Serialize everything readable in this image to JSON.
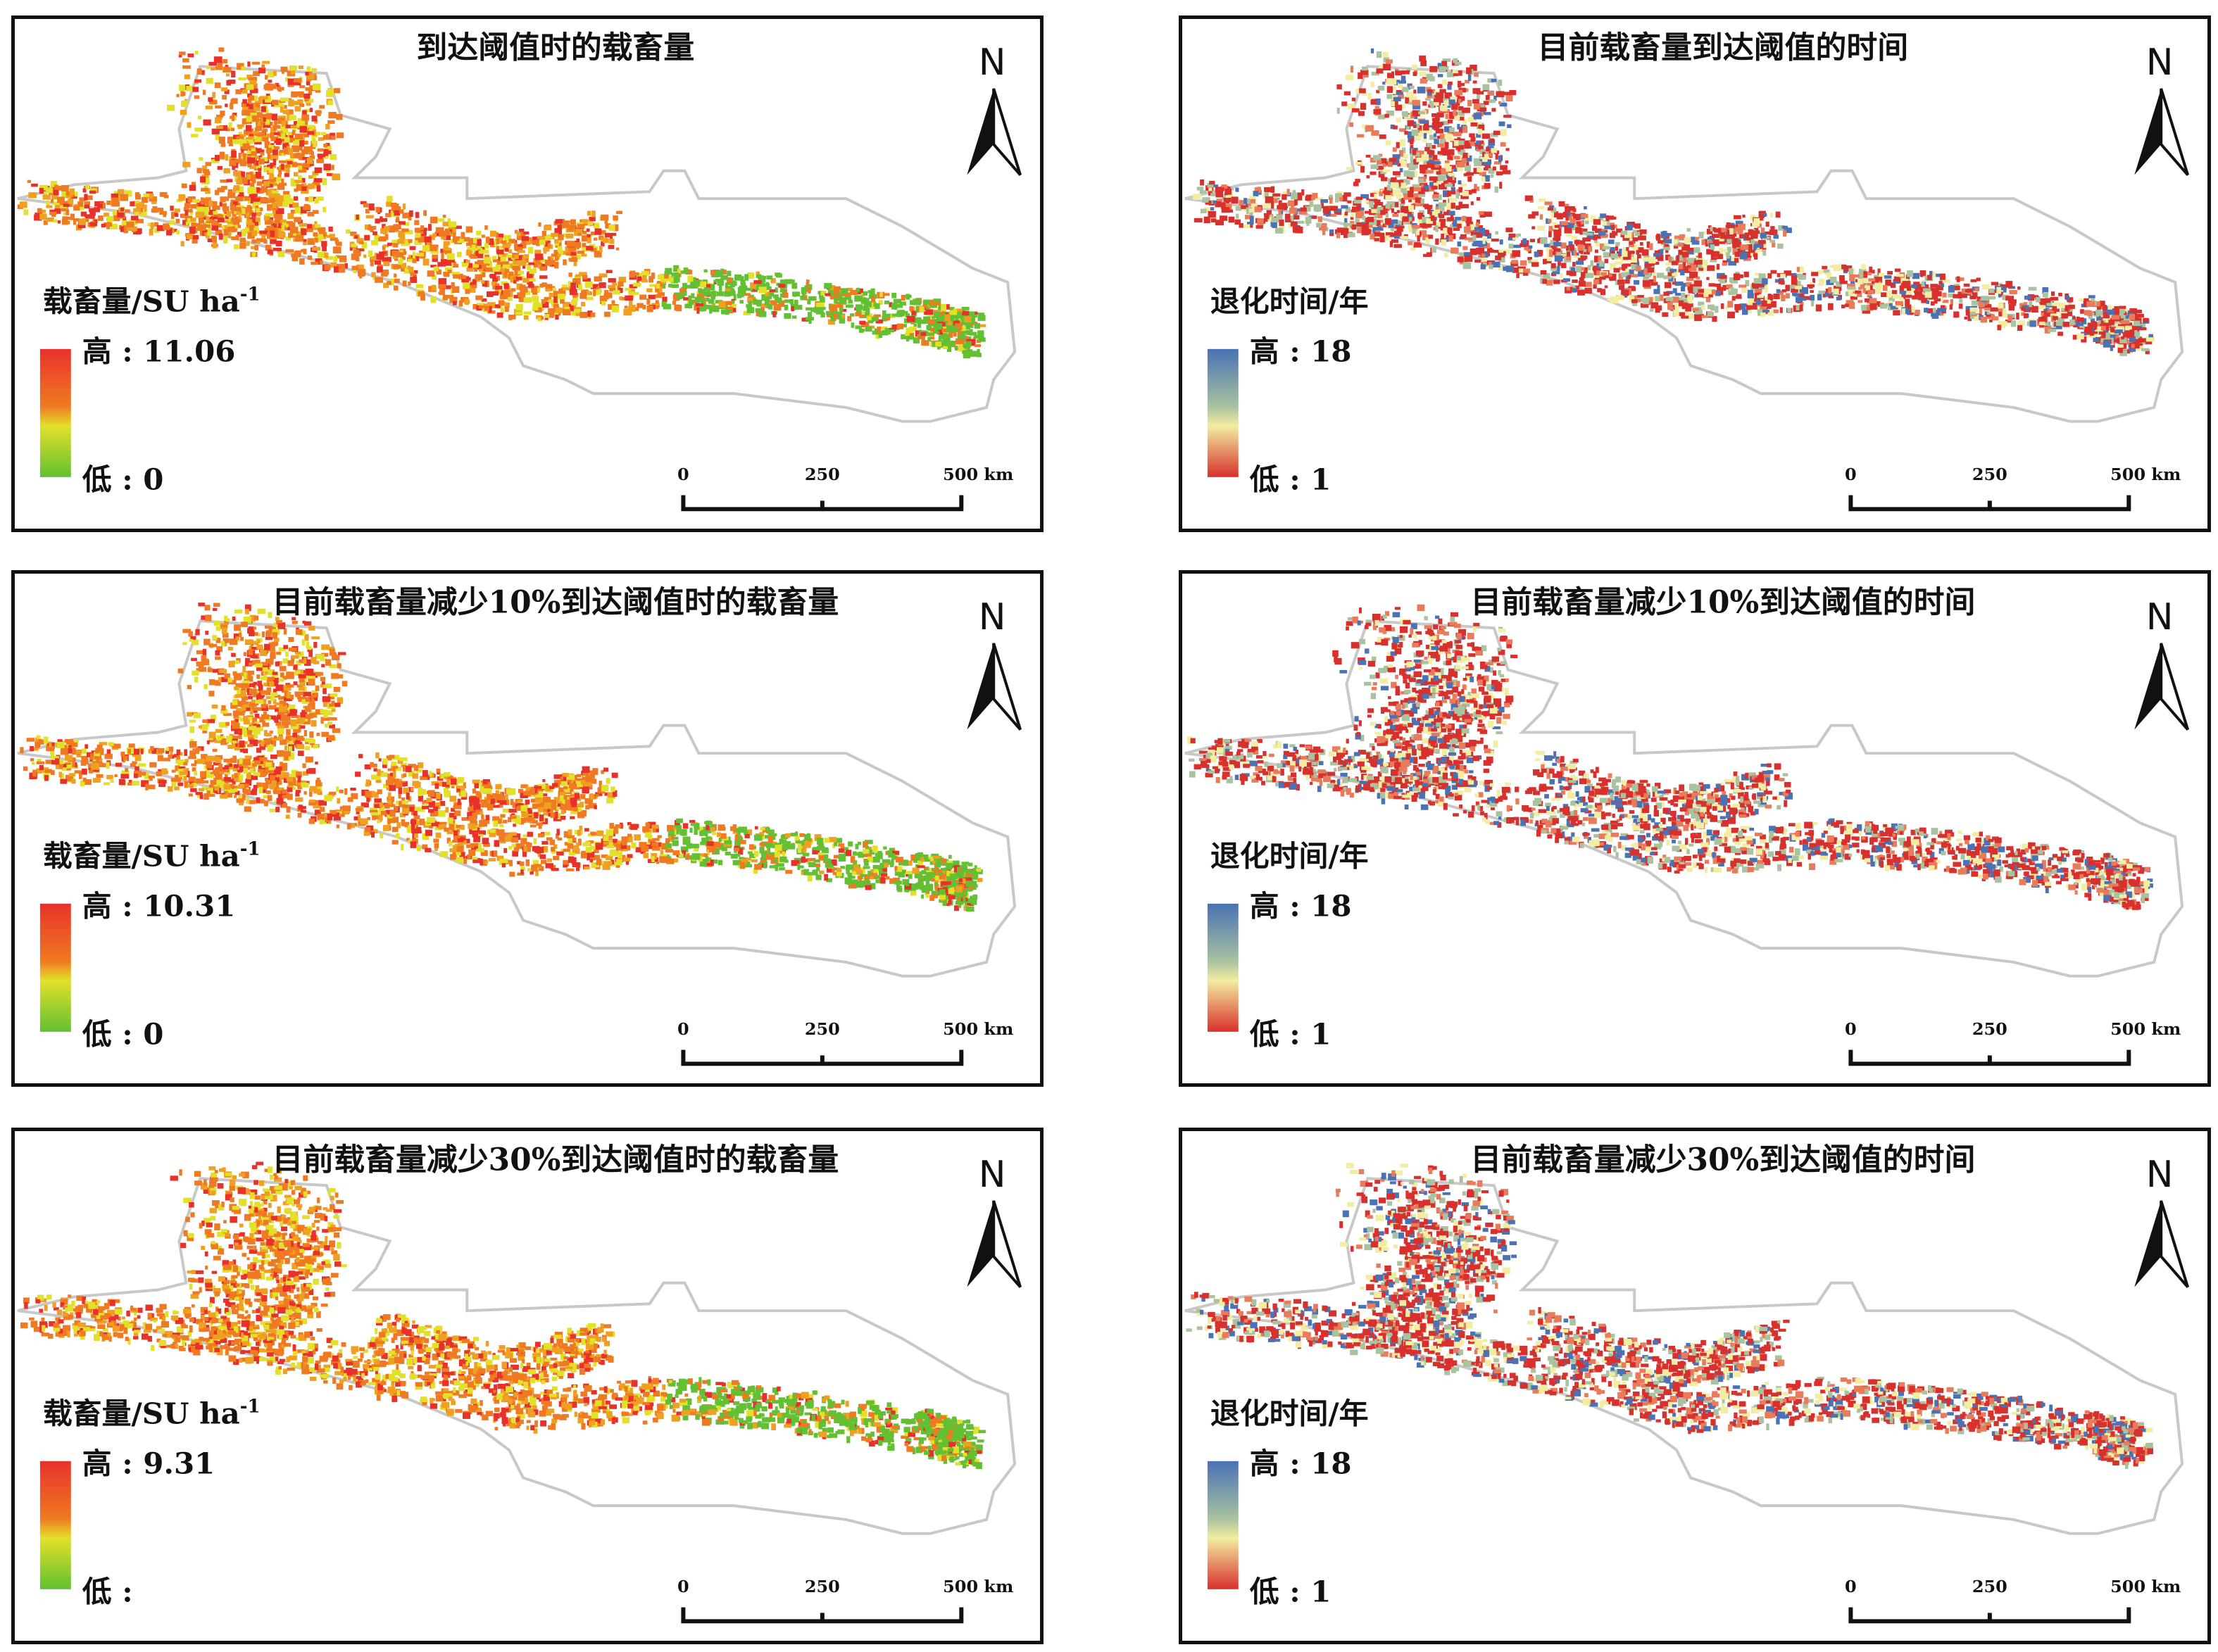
{
  "north_label": "N",
  "scale_bar": {
    "labels": [
      "0",
      "250",
      "500 km"
    ]
  },
  "palettes": {
    "capacity": {
      "high": "#e8312a",
      "mid1": "#f07a22",
      "mid2": "#e3e02a",
      "low": "#62c032"
    },
    "time": {
      "high": "#4a72b4",
      "mid1": "#a9c2a0",
      "mid2": "#f2eda0",
      "low": "#d8302c"
    }
  },
  "panels": [
    {
      "title": "到达阈值时的载畜量",
      "type": "capacity",
      "legend_title": "载畜量/SU ha",
      "legend_sup": "-1",
      "high_label": "高 : 11.06",
      "low_label": "低 : 0"
    },
    {
      "title": "目前载畜量到达阈值的时间",
      "type": "time",
      "legend_title": "退化时间/年",
      "legend_sup": "",
      "high_label": "高 : 18",
      "low_label": "低 : 1"
    },
    {
      "title": "目前载畜量减少10%到达阈值时的载畜量",
      "type": "capacity",
      "legend_title": "载畜量/SU ha",
      "legend_sup": "-1",
      "high_label": "高 : 10.31",
      "low_label": "低 : 0"
    },
    {
      "title": "目前载畜量减少10%到达阈值的时间",
      "type": "time",
      "legend_title": "退化时间/年",
      "legend_sup": "",
      "high_label": "高 : 18",
      "low_label": "低 : 1"
    },
    {
      "title": "目前载畜量减少30%到达阈值时的载畜量",
      "type": "capacity",
      "legend_title": "载畜量/SU ha",
      "legend_sup": "-1",
      "high_label": "高 : 9.31",
      "low_label": "低 :"
    },
    {
      "title": "目前载畜量减少30%到达阈值的时间",
      "type": "time",
      "legend_title": "退化时间/年",
      "legend_sup": "",
      "high_label": "高 : 18",
      "low_label": "低 : 1"
    }
  ]
}
